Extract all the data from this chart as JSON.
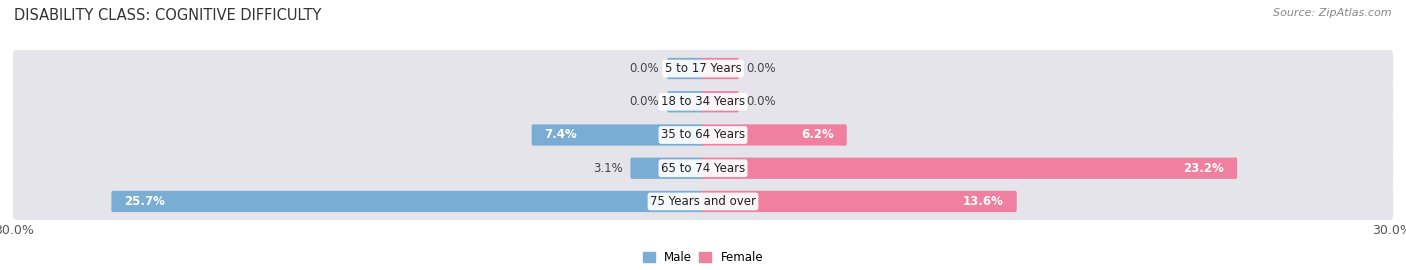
{
  "title": "DISABILITY CLASS: COGNITIVE DIFFICULTY",
  "source": "Source: ZipAtlas.com",
  "categories": [
    "5 to 17 Years",
    "18 to 34 Years",
    "35 to 64 Years",
    "65 to 74 Years",
    "75 Years and over"
  ],
  "male_values": [
    0.0,
    0.0,
    7.4,
    3.1,
    25.7
  ],
  "female_values": [
    0.0,
    0.0,
    6.2,
    23.2,
    13.6
  ],
  "male_color": "#7aadd4",
  "female_color": "#f080a0",
  "bar_background": "#e4e4ea",
  "row_bg_light": "#f0f0f5",
  "xlim": 30.0,
  "legend_male": "Male",
  "legend_female": "Female",
  "title_fontsize": 10.5,
  "label_fontsize": 8.5,
  "tick_fontsize": 9,
  "source_fontsize": 8,
  "zero_stub": 1.5
}
